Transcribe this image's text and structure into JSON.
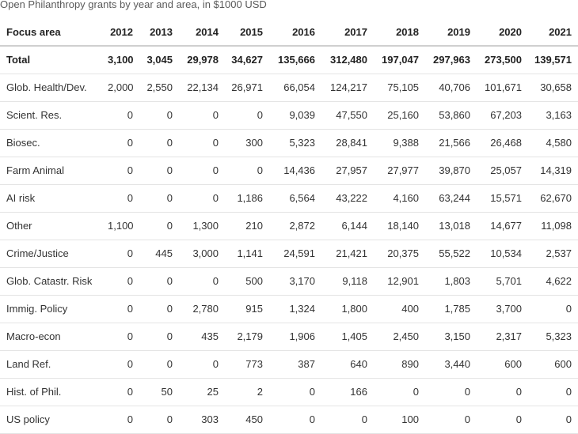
{
  "caption": "Open Philanthropy grants by year and area, in $1000 USD",
  "table": {
    "header": [
      "Focus area",
      "2012",
      "2013",
      "2014",
      "2015",
      "2016",
      "2017",
      "2018",
      "2019",
      "2020",
      "2021"
    ],
    "rows": [
      {
        "area": "Total",
        "values": [
          "3,100",
          "3,045",
          "29,978",
          "34,627",
          "135,666",
          "312,480",
          "197,047",
          "297,963",
          "273,500",
          "139,571"
        ]
      },
      {
        "area": "Glob. Health/Dev.",
        "values": [
          "2,000",
          "2,550",
          "22,134",
          "26,971",
          "66,054",
          "124,217",
          "75,105",
          "40,706",
          "101,671",
          "30,658"
        ]
      },
      {
        "area": "Scient. Res.",
        "values": [
          "0",
          "0",
          "0",
          "0",
          "9,039",
          "47,550",
          "25,160",
          "53,860",
          "67,203",
          "3,163"
        ]
      },
      {
        "area": "Biosec.",
        "values": [
          "0",
          "0",
          "0",
          "300",
          "5,323",
          "28,841",
          "9,388",
          "21,566",
          "26,468",
          "4,580"
        ]
      },
      {
        "area": "Farm Animal",
        "values": [
          "0",
          "0",
          "0",
          "0",
          "14,436",
          "27,957",
          "27,977",
          "39,870",
          "25,057",
          "14,319"
        ]
      },
      {
        "area": "AI risk",
        "values": [
          "0",
          "0",
          "0",
          "1,186",
          "6,564",
          "43,222",
          "4,160",
          "63,244",
          "15,571",
          "62,670"
        ]
      },
      {
        "area": "Other",
        "values": [
          "1,100",
          "0",
          "1,300",
          "210",
          "2,872",
          "6,144",
          "18,140",
          "13,018",
          "14,677",
          "11,098"
        ]
      },
      {
        "area": "Crime/Justice",
        "values": [
          "0",
          "445",
          "3,000",
          "1,141",
          "24,591",
          "21,421",
          "20,375",
          "55,522",
          "10,534",
          "2,537"
        ]
      },
      {
        "area": "Glob. Catastr. Risk",
        "values": [
          "0",
          "0",
          "0",
          "500",
          "3,170",
          "9,118",
          "12,901",
          "1,803",
          "5,701",
          "4,622"
        ]
      },
      {
        "area": "Immig. Policy",
        "values": [
          "0",
          "0",
          "2,780",
          "915",
          "1,324",
          "1,800",
          "400",
          "1,785",
          "3,700",
          "0"
        ]
      },
      {
        "area": "Macro-econ",
        "values": [
          "0",
          "0",
          "435",
          "2,179",
          "1,906",
          "1,405",
          "2,450",
          "3,150",
          "2,317",
          "5,323"
        ]
      },
      {
        "area": "Land Ref.",
        "values": [
          "0",
          "0",
          "0",
          "773",
          "387",
          "640",
          "890",
          "3,440",
          "600",
          "600"
        ]
      },
      {
        "area": "Hist. of Phil.",
        "values": [
          "0",
          "50",
          "25",
          "2",
          "0",
          "166",
          "0",
          "0",
          "0",
          "0"
        ]
      },
      {
        "area": "US policy",
        "values": [
          "0",
          "0",
          "303",
          "450",
          "0",
          "0",
          "100",
          "0",
          "0",
          "0"
        ]
      }
    ]
  }
}
